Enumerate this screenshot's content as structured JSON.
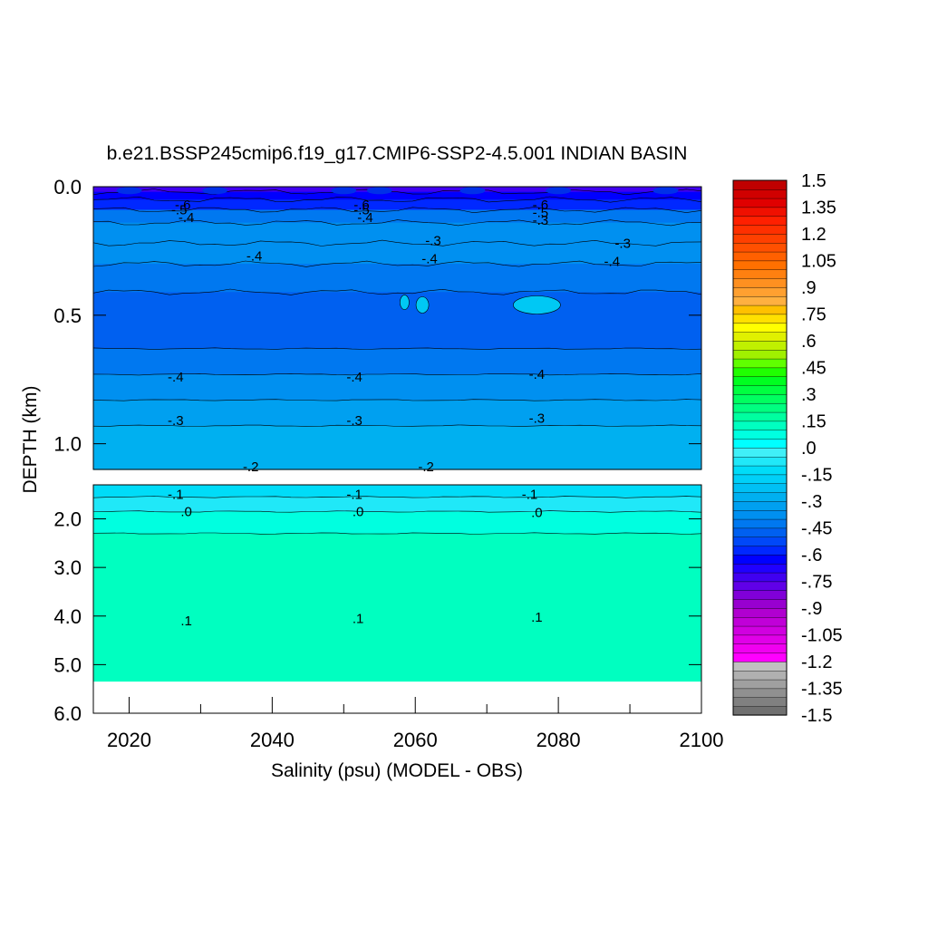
{
  "chart_data": {
    "type": "heatmap",
    "title": "b.e21.BSSP245cmip6.f19_g17.CMIP6-SSP2-4.5.001 INDIAN BASIN",
    "xlabel": "Salinity (psu) (MODEL - OBS)",
    "ylabel": "DEPTH (km)",
    "xlim": [
      2015,
      2100
    ],
    "x_ticks": [
      "2020",
      "2040",
      "2060",
      "2080",
      "2100"
    ],
    "x_tick_values": [
      2020,
      2040,
      2060,
      2080,
      2100
    ],
    "panels": [
      {
        "name": "upper",
        "ylim": [
          0.0,
          1.1
        ],
        "y_ticks": [
          "0.0",
          "0.5",
          "1.0"
        ],
        "y_tick_values": [
          0.0,
          0.5,
          1.0
        ],
        "layers": [
          {
            "depth_top": 0.0,
            "depth_bottom": 0.02,
            "value": -0.75
          },
          {
            "depth_top": 0.02,
            "depth_bottom": 0.05,
            "value": -0.65
          },
          {
            "depth_top": 0.05,
            "depth_bottom": 0.09,
            "value": -0.55
          },
          {
            "depth_top": 0.09,
            "depth_bottom": 0.14,
            "value": -0.45
          },
          {
            "depth_top": 0.14,
            "depth_bottom": 0.22,
            "value": -0.35
          },
          {
            "depth_top": 0.22,
            "depth_bottom": 0.3,
            "value": -0.38
          },
          {
            "depth_top": 0.3,
            "depth_bottom": 0.41,
            "value": -0.45
          },
          {
            "depth_top": 0.41,
            "depth_bottom": 0.63,
            "value": -0.5
          },
          {
            "depth_top": 0.63,
            "depth_bottom": 0.73,
            "value": -0.45
          },
          {
            "depth_top": 0.73,
            "depth_bottom": 0.83,
            "value": -0.4
          },
          {
            "depth_top": 0.83,
            "depth_bottom": 0.93,
            "value": -0.33
          },
          {
            "depth_top": 0.93,
            "depth_bottom": 1.1,
            "value": -0.27
          }
        ],
        "contour_labels": [
          {
            "text": "-.6",
            "x": 2027.5,
            "depth": 0.07
          },
          {
            "text": "-.5",
            "x": 2027.0,
            "depth": 0.09
          },
          {
            "text": "-.4",
            "x": 2028.0,
            "depth": 0.12
          },
          {
            "text": "-.6",
            "x": 2052.5,
            "depth": 0.07
          },
          {
            "text": "-.5",
            "x": 2052.5,
            "depth": 0.09
          },
          {
            "text": "-.4",
            "x": 2053.0,
            "depth": 0.12
          },
          {
            "text": "-.6",
            "x": 2077.5,
            "depth": 0.07
          },
          {
            "text": "-.5",
            "x": 2077.5,
            "depth": 0.1
          },
          {
            "text": "-.3",
            "x": 2077.5,
            "depth": 0.13
          },
          {
            "text": "-.3",
            "x": 2062.5,
            "depth": 0.21
          },
          {
            "text": "-.3",
            "x": 2089.0,
            "depth": 0.22
          },
          {
            "text": "-.4",
            "x": 2037.5,
            "depth": 0.27
          },
          {
            "text": "-.4",
            "x": 2062.0,
            "depth": 0.28
          },
          {
            "text": "-.4",
            "x": 2087.5,
            "depth": 0.29
          },
          {
            "text": "-.4",
            "x": 2026.5,
            "depth": 0.74
          },
          {
            "text": "-.4",
            "x": 2051.5,
            "depth": 0.74
          },
          {
            "text": "-.4",
            "x": 2077.0,
            "depth": 0.73
          },
          {
            "text": "-.3",
            "x": 2026.5,
            "depth": 0.91
          },
          {
            "text": "-.3",
            "x": 2051.5,
            "depth": 0.91
          },
          {
            "text": "-.3",
            "x": 2077.0,
            "depth": 0.9
          },
          {
            "text": "-.2",
            "x": 2037.0,
            "depth": 1.09
          },
          {
            "text": "-.2",
            "x": 2061.5,
            "depth": 1.09
          }
        ]
      },
      {
        "name": "lower",
        "ylim": [
          1.3,
          6.0
        ],
        "y_ticks": [
          "2.0",
          "3.0",
          "4.0",
          "5.0",
          "6.0"
        ],
        "y_tick_values": [
          2.0,
          3.0,
          4.0,
          5.0,
          6.0
        ],
        "data_bottom": 5.35,
        "layers": [
          {
            "depth_top": 1.3,
            "depth_bottom": 1.55,
            "value": -0.1
          },
          {
            "depth_top": 1.55,
            "depth_bottom": 1.85,
            "value": -0.05
          },
          {
            "depth_top": 1.85,
            "depth_bottom": 2.3,
            "value": 0.05
          },
          {
            "depth_top": 2.3,
            "depth_bottom": 5.35,
            "value": 0.1
          }
        ],
        "contour_labels": [
          {
            "text": "-.1",
            "x": 2026.5,
            "depth": 1.5
          },
          {
            "text": "-.1",
            "x": 2051.5,
            "depth": 1.5
          },
          {
            "text": "-.1",
            "x": 2076.0,
            "depth": 1.5
          },
          {
            "text": ".0",
            "x": 2028.0,
            "depth": 1.85
          },
          {
            "text": ".0",
            "x": 2052.0,
            "depth": 1.85
          },
          {
            "text": ".0",
            "x": 2077.0,
            "depth": 1.87
          },
          {
            "text": ".1",
            "x": 2028.0,
            "depth": 4.1
          },
          {
            "text": ".1",
            "x": 2052.0,
            "depth": 4.05
          },
          {
            "text": ".1",
            "x": 2077.0,
            "depth": 4.02
          }
        ]
      }
    ],
    "colorbar": {
      "min": -1.5,
      "max": 1.5,
      "step": 0.05,
      "labels": [
        "1.5",
        "1.35",
        "1.2",
        "1.05",
        ".9",
        ".75",
        ".6",
        ".45",
        ".3",
        ".15",
        ".0",
        "-.15",
        "-.3",
        "-.45",
        "-.6",
        "-.75",
        "-.9",
        "-1.05",
        "-1.2",
        "-1.35",
        "-1.5"
      ],
      "colors": [
        "#707070",
        "#808080",
        "#909090",
        "#a0a0a0",
        "#b0b0b0",
        "#c0c0c0",
        "#ff00ff",
        "#f000f0",
        "#e000e8",
        "#d000e0",
        "#c000d8",
        "#b000d0",
        "#9800d0",
        "#8000d8",
        "#6000e8",
        "#4000f0",
        "#2000ff",
        "#0000ff",
        "#0028ff",
        "#0048f8",
        "#0060f0",
        "#0078f0",
        "#0090f0",
        "#00a0f0",
        "#00b0f0",
        "#00c0f4",
        "#00d0f8",
        "#00dcf8",
        "#20e8f8",
        "#40f0f8",
        "#00ffff",
        "#00ffe0",
        "#00ffc0",
        "#00ffa0",
        "#00ff80",
        "#00ff60",
        "#00ff40",
        "#00ff20",
        "#20ff00",
        "#60ff00",
        "#a0f000",
        "#c0f000",
        "#e0f000",
        "#ffff00",
        "#ffe000",
        "#ffc000",
        "#ffb040",
        "#ffa030",
        "#ff9020",
        "#ff8010",
        "#ff7000",
        "#ff6000",
        "#ff5000",
        "#ff4000",
        "#ff3000",
        "#ff2000",
        "#f01000",
        "#e00000",
        "#d00000",
        "#c00000"
      ]
    }
  }
}
